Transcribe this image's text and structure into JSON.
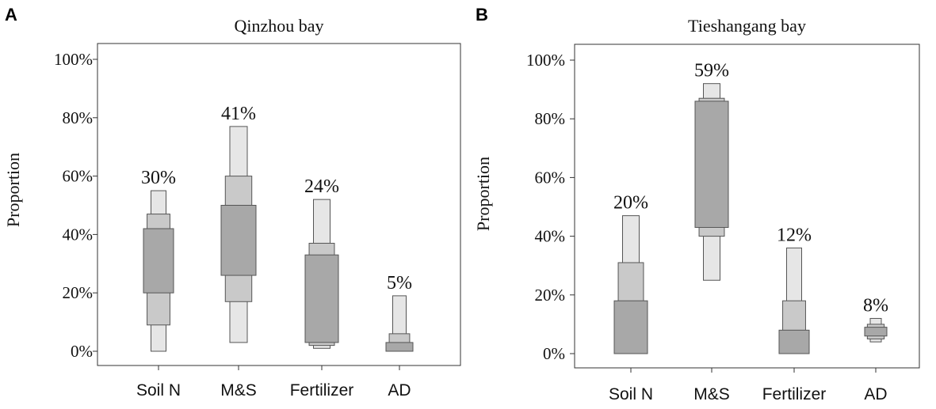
{
  "chart_data": [
    {
      "type": "box",
      "panel": "A",
      "title": "Qinzhou bay",
      "ylabel": "Proportion",
      "yticks": [
        "0%",
        "20%",
        "40%",
        "60%",
        "80%",
        "100%"
      ],
      "ylim": [
        0,
        1
      ],
      "categories": [
        "Soil N",
        "M&S",
        "Fertilizer",
        "AD"
      ],
      "mean_labels": [
        "30%",
        "41%",
        "24%",
        "5%"
      ],
      "ranges": [
        {
          "ci95": [
            0.0,
            0.55
          ],
          "ci75": [
            0.09,
            0.47
          ],
          "ci50": [
            0.2,
            0.42
          ]
        },
        {
          "ci95": [
            0.03,
            0.77
          ],
          "ci75": [
            0.17,
            0.6
          ],
          "ci50": [
            0.26,
            0.5
          ]
        },
        {
          "ci95": [
            0.01,
            0.52
          ],
          "ci75": [
            0.02,
            0.37
          ],
          "ci50": [
            0.03,
            0.33
          ]
        },
        {
          "ci95": [
            0.0,
            0.19
          ],
          "ci75": [
            0.0,
            0.06
          ],
          "ci50": [
            0.0,
            0.03
          ]
        }
      ],
      "colors": {
        "ci95": "#e6e6e6",
        "ci75": "#c9c9c9",
        "ci50": "#a8a8a8"
      }
    },
    {
      "type": "box",
      "panel": "B",
      "title": "Tieshangang bay",
      "ylabel": "Proportion",
      "yticks": [
        "0%",
        "20%",
        "40%",
        "60%",
        "80%",
        "100%"
      ],
      "ylim": [
        0,
        1
      ],
      "categories": [
        "Soil N",
        "M&S",
        "Fertilizer",
        "AD"
      ],
      "mean_labels": [
        "20%",
        "59%",
        "12%",
        "8%"
      ],
      "ranges": [
        {
          "ci95": [
            0.0,
            0.47
          ],
          "ci75": [
            0.0,
            0.31
          ],
          "ci50": [
            0.0,
            0.18
          ]
        },
        {
          "ci95": [
            0.25,
            0.92
          ],
          "ci75": [
            0.4,
            0.87
          ],
          "ci50": [
            0.43,
            0.86
          ]
        },
        {
          "ci95": [
            0.0,
            0.36
          ],
          "ci75": [
            0.0,
            0.18
          ],
          "ci50": [
            0.0,
            0.08
          ]
        },
        {
          "ci95": [
            0.04,
            0.12
          ],
          "ci75": [
            0.05,
            0.1
          ],
          "ci50": [
            0.06,
            0.09
          ]
        }
      ],
      "colors": {
        "ci95": "#e6e6e6",
        "ci75": "#c9c9c9",
        "ci50": "#a8a8a8"
      }
    }
  ]
}
